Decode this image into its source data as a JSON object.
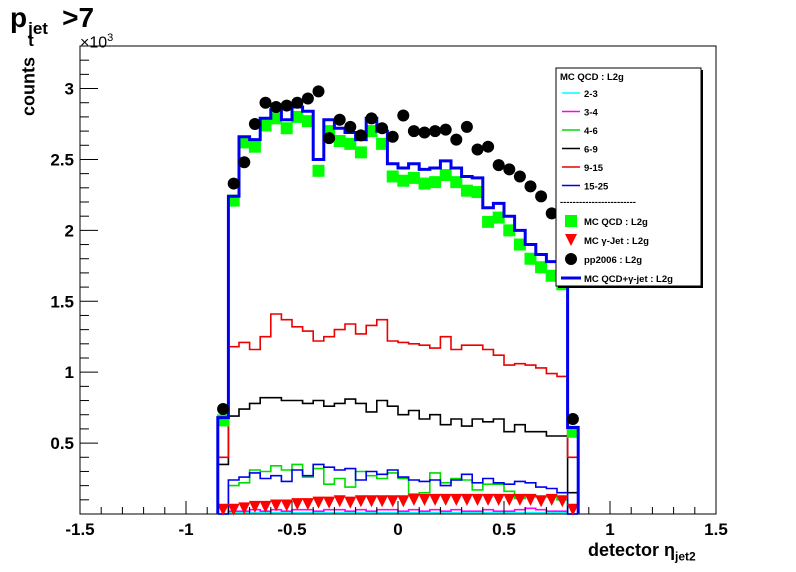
{
  "chart_data": {
    "type": "histogram",
    "title": {
      "main": "p",
      "sub": "t",
      "sup": "jet",
      "rest": ">7"
    },
    "ylabel": "counts",
    "xlabel": {
      "main": "detector η",
      "sub": "jet2"
    },
    "y_multiplier": {
      "base": "×10",
      "exp": "3"
    },
    "xlim": [
      -1.5,
      1.5
    ],
    "ylim": [
      0,
      3.3
    ],
    "x_ticks": [
      "-1.5",
      "-1",
      "-0.5",
      "0",
      "0.5",
      "1",
      "1.5"
    ],
    "y_ticks": [
      "0.5",
      "1",
      "1.5",
      "2",
      "2.5",
      "3"
    ],
    "bins": [
      -0.85,
      -0.8,
      -0.75,
      -0.7,
      -0.65,
      -0.6,
      -0.55,
      -0.5,
      -0.45,
      -0.4,
      -0.35,
      -0.3,
      -0.25,
      -0.2,
      -0.15,
      -0.1,
      -0.05,
      0,
      0.05,
      0.1,
      0.15,
      0.2,
      0.25,
      0.3,
      0.35,
      0.4,
      0.45,
      0.5,
      0.55,
      0.6,
      0.65,
      0.7,
      0.75,
      0.8,
      0.85
    ],
    "legend_position": "top-right",
    "legend_header": "MC QCD : L2g",
    "legend_separator": "------------------------",
    "series": [
      {
        "name": "2-3",
        "style": "line",
        "color": "#00ffff",
        "values": [
          0,
          0.01,
          0.01,
          0.01,
          0.01,
          0.01,
          0.01,
          0.01,
          0.01,
          0.01,
          0.01,
          0.01,
          0.01,
          0.01,
          0.01,
          0.01,
          0.01,
          0.01,
          0.01,
          0.01,
          0.01,
          0.01,
          0.01,
          0.01,
          0.01,
          0.01,
          0.01,
          0.01,
          0.01,
          0.01,
          0.01,
          0.01,
          0.01,
          0
        ]
      },
      {
        "name": "3-4",
        "style": "line",
        "color": "#ff00ff",
        "values": [
          0,
          0.02,
          0.02,
          0.03,
          0.02,
          0.03,
          0.02,
          0.03,
          0.03,
          0.02,
          0.03,
          0.03,
          0.02,
          0.03,
          0.02,
          0.03,
          0.03,
          0.02,
          0.03,
          0.02,
          0.03,
          0.02,
          0.03,
          0.02,
          0.02,
          0.03,
          0.02,
          0.02,
          0.03,
          0.04,
          0.03,
          0.02,
          0.02,
          0
        ]
      },
      {
        "name": "4-6",
        "style": "line",
        "color": "#00dd00",
        "values": [
          0,
          0.2,
          0.22,
          0.31,
          0.3,
          0.34,
          0.31,
          0.35,
          0.26,
          0.32,
          0.21,
          0.25,
          0.19,
          0.3,
          0.27,
          0.25,
          0.29,
          0.25,
          0.14,
          0.15,
          0.29,
          0.22,
          0.25,
          0.24,
          0.17,
          0.21,
          0.21,
          0.16,
          0.11,
          0.13,
          0.12,
          0.12,
          0.1,
          0
        ]
      },
      {
        "name": "6-9",
        "style": "line",
        "color": "#000000",
        "values": [
          0.35,
          0.69,
          0.74,
          0.78,
          0.82,
          0.82,
          0.8,
          0.8,
          0.78,
          0.8,
          0.76,
          0.78,
          0.81,
          0.78,
          0.72,
          0.8,
          0.76,
          0.7,
          0.73,
          0.67,
          0.7,
          0.63,
          0.67,
          0.62,
          0.67,
          0.65,
          0.67,
          0.58,
          0.63,
          0.58,
          0.58,
          0.55,
          0.55,
          0.15
        ]
      },
      {
        "name": "9-15",
        "style": "line",
        "color": "#ee0000",
        "values": [
          0.4,
          1.18,
          1.21,
          1.16,
          1.25,
          1.41,
          1.37,
          1.32,
          1.29,
          1.22,
          1.25,
          1.3,
          1.34,
          1.27,
          1.33,
          1.37,
          1.22,
          1.21,
          1.2,
          1.19,
          1.17,
          1.25,
          1.16,
          1.19,
          1.19,
          1.16,
          1.12,
          1.05,
          1.06,
          1.05,
          1.03,
          0.99,
          0.97,
          0.4
        ]
      },
      {
        "name": "15-25",
        "style": "line",
        "color": "#0000ee",
        "values": [
          0,
          0.24,
          0.26,
          0.29,
          0.25,
          0.27,
          0.23,
          0.31,
          0.27,
          0.35,
          0.33,
          0.31,
          0.32,
          0.24,
          0.3,
          0.28,
          0.31,
          0.26,
          0.24,
          0.23,
          0.24,
          0.2,
          0.24,
          0.28,
          0.22,
          0.25,
          0.22,
          0.21,
          0.23,
          0.22,
          0.19,
          0.18,
          0.15,
          0
        ]
      },
      {
        "name": "MC QCD : L2g",
        "style": "square",
        "color": "#00ff00",
        "values": [
          0.66,
          2.21,
          2.62,
          2.59,
          2.74,
          2.79,
          2.72,
          2.8,
          2.77,
          2.42,
          2.7,
          2.63,
          2.61,
          2.55,
          2.7,
          2.61,
          2.38,
          2.35,
          2.37,
          2.33,
          2.34,
          2.39,
          2.34,
          2.28,
          2.27,
          2.06,
          2.09,
          2.0,
          1.9,
          1.8,
          1.74,
          1.68,
          1.62,
          0.58
        ]
      },
      {
        "name": "MC γ-Jet : L2g",
        "style": "triangle",
        "color": "#ff0000",
        "values": [
          0.03,
          0.03,
          0.04,
          0.05,
          0.05,
          0.06,
          0.06,
          0.07,
          0.07,
          0.08,
          0.08,
          0.09,
          0.08,
          0.09,
          0.09,
          0.09,
          0.09,
          0.09,
          0.1,
          0.1,
          0.1,
          0.1,
          0.1,
          0.1,
          0.1,
          0.1,
          0.1,
          0.1,
          0.1,
          0.1,
          0.09,
          0.1,
          0.09,
          0.03
        ]
      },
      {
        "name": "pp2006 : L2g",
        "style": "circle",
        "color": "#000000",
        "values": [
          0.74,
          2.33,
          2.48,
          2.75,
          2.9,
          2.87,
          2.88,
          2.9,
          2.93,
          2.98,
          2.65,
          2.78,
          2.73,
          2.67,
          2.79,
          2.72,
          2.66,
          2.81,
          2.7,
          2.69,
          2.7,
          2.71,
          2.64,
          2.73,
          2.57,
          2.59,
          2.46,
          2.43,
          2.38,
          2.31,
          2.24,
          2.12,
          2.05,
          0.67
        ]
      },
      {
        "name": "MC QCD+γ-jet : L2g",
        "style": "line-thick",
        "color": "#0000ee",
        "values": [
          0.68,
          2.24,
          2.66,
          2.64,
          2.79,
          2.85,
          2.78,
          2.87,
          2.84,
          2.5,
          2.78,
          2.72,
          2.69,
          2.64,
          2.79,
          2.7,
          2.47,
          2.44,
          2.47,
          2.43,
          2.44,
          2.49,
          2.44,
          2.38,
          2.37,
          2.16,
          2.19,
          2.1,
          2.0,
          1.9,
          1.83,
          1.78,
          1.71,
          0.61
        ]
      }
    ]
  }
}
